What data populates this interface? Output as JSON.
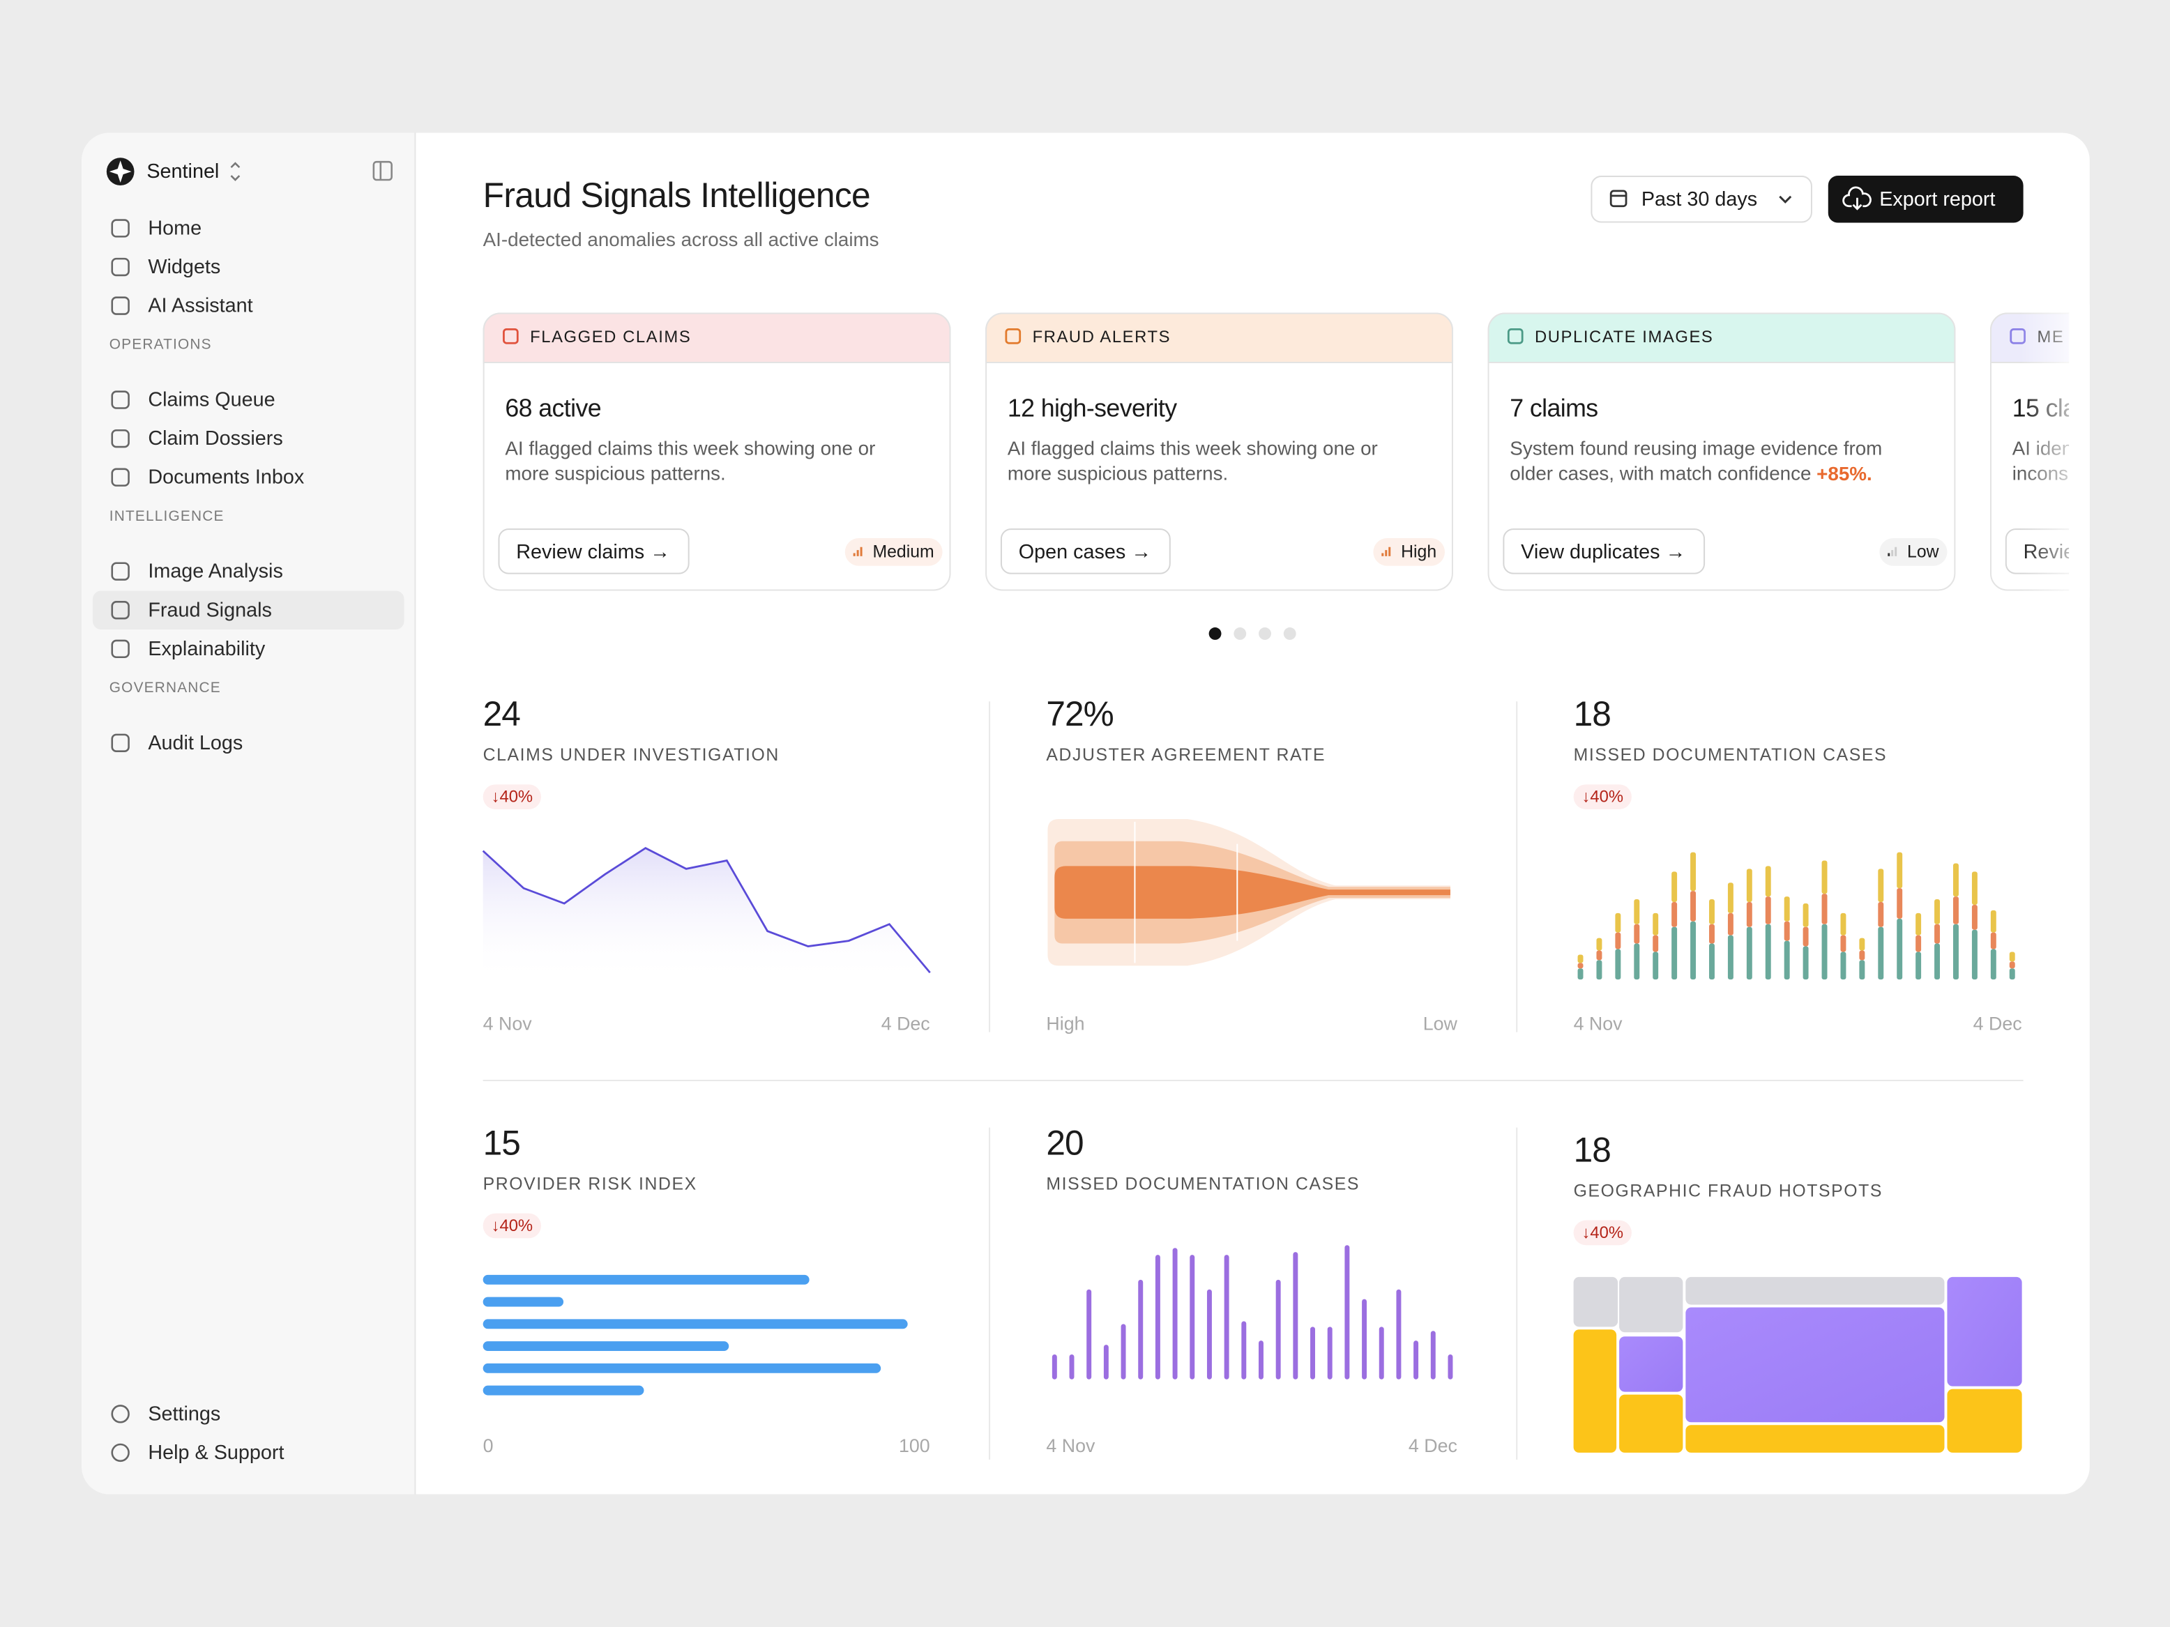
{
  "sidebar": {
    "brand": "Sentinel",
    "groups": [
      {
        "items": [
          "Home",
          "Widgets",
          "AI Assistant"
        ]
      },
      {
        "section": "OPERATIONS",
        "items": [
          "Claims Queue",
          "Claim Dossiers",
          "Documents Inbox"
        ]
      },
      {
        "section": "INTELLIGENCE",
        "items": [
          "Image Analysis",
          "Fraud Signals",
          "Explainability"
        ]
      },
      {
        "section": "GOVERNANCE",
        "items": [
          "Audit Logs"
        ]
      }
    ],
    "footer": [
      "Settings",
      "Help & Support"
    ]
  },
  "header": {
    "title": "Fraud Signals Intelligence",
    "subtitle": "AI-detected anomalies across all active claims",
    "date_range": "Past 30 days",
    "export": "Export report"
  },
  "cards": [
    {
      "label": "FLAGGED CLAIMS",
      "title": "68 active",
      "description": [
        "AI flagged claims this week showing one or",
        "more suspicious patterns."
      ],
      "action": "Review claims →",
      "severity": "Medium"
    },
    {
      "label": "FRAUD ALERTS",
      "title": "12 high-severity",
      "description": [
        "AI flagged claims this week showing one or",
        "more suspicious patterns."
      ],
      "action": "Open cases →",
      "severity": "High"
    },
    {
      "label": "DUPLICATE IMAGES",
      "title": "7 claims",
      "description": [
        "System found reusing image evidence from",
        "older cases, with match confidence "
      ],
      "highlight": "+85%.",
      "action": "View duplicates →",
      "severity": "Low"
    },
    {
      "label": "ME",
      "title": "15 cla",
      "description": [
        "AI iden",
        "incons"
      ],
      "action": "Revie"
    }
  ],
  "metrics": [
    {
      "value": "24",
      "label": "CLAIMS UNDER INVESTIGATION",
      "change": "↓40%",
      "chart": {
        "type": "line",
        "color": "#5a4bd8",
        "values": [
          95,
          68,
          57,
          78,
          97,
          82,
          88,
          37,
          26,
          30,
          42,
          7
        ],
        "ylim": [
          0,
          110
        ],
        "x_labels": [
          "4 Nov",
          "4 Dec"
        ]
      }
    },
    {
      "value": "72%",
      "label": "ADJUSTER AGREEMENT RATE",
      "chart": {
        "type": "funnel",
        "x_labels": [
          "High",
          "Low"
        ]
      }
    },
    {
      "value": "18",
      "label": "MISSED DOCUMENTATION CASES",
      "change": "↓40%",
      "chart": {
        "type": "stacked_bar",
        "ylim": [
          0,
          100
        ],
        "x_labels": [
          "4 Nov",
          "4 Dec"
        ],
        "series": [
          {
            "color": "#6aa99b",
            "values": [
              8,
              14,
              22,
              26,
              20,
              38,
              42,
              26,
              32,
              38,
              40,
              28,
              24,
              40,
              20,
              14,
              38,
              44,
              20,
              26,
              40,
              36,
              22,
              8
            ]
          },
          {
            "color": "#e8875a",
            "values": [
              4,
              7,
              12,
              14,
              12,
              18,
              22,
              14,
              16,
              18,
              20,
              14,
              14,
              22,
              12,
              7,
              18,
              22,
              12,
              14,
              20,
              18,
              12,
              5
            ]
          },
          {
            "color": "#e9c44a",
            "values": [
              6,
              9,
              14,
              18,
              16,
              22,
              28,
              18,
              22,
              24,
              22,
              18,
              17,
              24,
              16,
              9,
              24,
              26,
              16,
              18,
              24,
              24,
              16,
              7
            ]
          }
        ]
      }
    },
    {
      "value": "15",
      "label": "PROVIDER RISK INDEX",
      "change": "↓40%",
      "chart": {
        "type": "hbar",
        "color": "#4a9ff0",
        "values": [
          73,
          18,
          95,
          55,
          89,
          36
        ],
        "xlim": [
          0,
          100
        ],
        "xticks": [
          0,
          100
        ]
      }
    },
    {
      "value": "20",
      "label": "MISSED DOCUMENTATION CASES",
      "chart": {
        "type": "bar",
        "color": "#9b6ee0",
        "values": [
          18,
          18,
          65,
          25,
          40,
          72,
          90,
          95,
          90,
          65,
          90,
          42,
          28,
          72,
          92,
          38,
          38,
          97,
          58,
          38,
          65,
          28,
          35,
          18
        ],
        "ylim": [
          0,
          100
        ],
        "x_labels": [
          "4 Nov",
          "4 Dec"
        ]
      }
    },
    {
      "value": "18",
      "label": "GEOGRAPHIC FRAUD HOTSPOTS",
      "change": "↓40%",
      "chart": {
        "type": "treemap"
      }
    }
  ]
}
